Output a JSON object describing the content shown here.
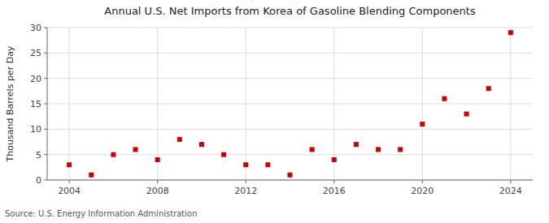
{
  "chart_data": {
    "type": "scatter",
    "title": "Annual U.S. Net Imports from Korea of Gasoline Blending Components",
    "ylabel": "Thousand Barrels per Day",
    "source": "Source: U.S. Energy Information Administration",
    "x": [
      2004,
      2005,
      2006,
      2007,
      2008,
      2009,
      2010,
      2011,
      2012,
      2013,
      2014,
      2015,
      2016,
      2017,
      2018,
      2019,
      2020,
      2021,
      2022,
      2023,
      2024
    ],
    "values": [
      3,
      1,
      5,
      6,
      4,
      8,
      7,
      5,
      3,
      3,
      1,
      6,
      4,
      7,
      6,
      6,
      11,
      16,
      13,
      18,
      29
    ],
    "color": "#cc0000",
    "marker": "square",
    "xlim": [
      2003,
      2025
    ],
    "xticks": [
      2004,
      2008,
      2012,
      2016,
      2020,
      2024
    ],
    "ylim": [
      0,
      30
    ],
    "yticks": [
      0,
      5,
      10,
      15,
      20,
      25,
      30
    ],
    "grid": true
  }
}
